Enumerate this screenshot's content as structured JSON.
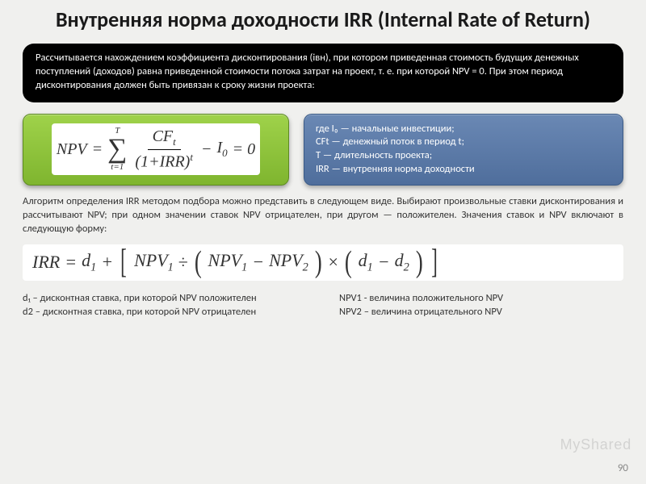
{
  "title": "Внутренняя норма доходности IRR (Internal Rate of Return)",
  "blackbox_text": "Рассчитывается нахождением коэффициента дисконтирования (iвн), при котором приведенная стоимость будущих денежных поступлений (доходов) равна приведенной стоимости потока затрат на проект, т. е. при которой NPV = 0. При этом период дисконтирования должен быть привязан к сроку жизни проекта:",
  "npv_formula": {
    "lhs": "NPV",
    "eq": "=",
    "sum_top": "T",
    "sum_bottom": "t=1",
    "frac_num": "CFt",
    "frac_den_base": "(1+IRR)",
    "frac_den_exp": "t",
    "minus": "−",
    "i0": "I",
    "i0_sub": "0",
    "eq_zero": "= 0"
  },
  "legend": {
    "l1": "где I₀ — начальные инвестиции;",
    "l2": "CFt — денежный поток в период t;",
    "l3": "T — длительность проекта;",
    "l4": "IRR — внутренняя норма доходности"
  },
  "algo_text": "Алгоритм определения IRR методом подбора можно представить в следующем виде. Выбирают произвольные ставки дисконтирования и рассчитывают NPV; при одном значении ставок NPV отрицателен, при другом — положителен. Значения ставок и NPV включают в следующую форму:",
  "irr_formula": {
    "lhs": "IRR",
    "eq": "=",
    "d1": "d",
    "d1_sub": "1",
    "plus": "+",
    "npv1": "NPV",
    "npv1_sub": "1",
    "div": "÷",
    "npv1b": "NPV",
    "npv1b_sub": "1",
    "minus": "−",
    "npv2": "NPV",
    "npv2_sub": "2",
    "times": "×",
    "d1b": "d",
    "d1b_sub": "1",
    "minus2": "−",
    "d2": "d",
    "d2_sub": "2"
  },
  "bottom_left": {
    "l1": "d₁ – дисконтная ставка, при которой NPV положителен",
    "l2": "d2 – дисконтная ставка, при которой NPV отрицателен"
  },
  "bottom_right": {
    "l1": "NPV1 - величина положительного NPV",
    "l2": "NPV2 – величина отрицательного NPV"
  },
  "watermark": "MyShared",
  "page_number": "90",
  "colors": {
    "page_bg": "#f0f0ee",
    "blackbox_bg": "#000000",
    "green_top": "#9fd24a",
    "green_bottom": "#7fb52f",
    "blue_top": "#6a88b4",
    "blue_bottom": "#4f6e9c"
  }
}
